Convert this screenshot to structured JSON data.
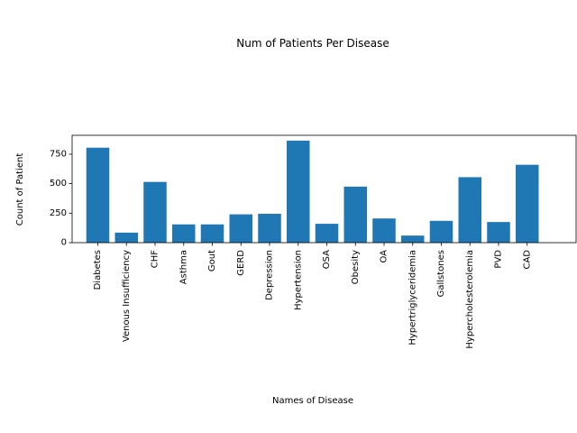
{
  "chart_data": {
    "type": "bar",
    "title": "Num of Patients Per Disease",
    "xlabel": "Names of Disease",
    "ylabel": "Count of Patient",
    "categories": [
      "Diabetes",
      "Venous Insufficiency",
      "CHF",
      "Asthma",
      "Gout",
      "GERD",
      "Depression",
      "Hypertension",
      "OSA",
      "Obesity",
      "OA",
      "Hypertriglyceridemia",
      "Gallstones",
      "Hypercholesterolemia",
      "PVD",
      "CAD"
    ],
    "values": [
      805,
      85,
      515,
      155,
      155,
      240,
      245,
      865,
      160,
      475,
      205,
      60,
      185,
      555,
      175,
      660
    ],
    "ylim": [
      0,
      910
    ],
    "yticks": [
      0,
      250,
      500,
      750
    ],
    "bar_color": "#1f77b4",
    "grid": false
  }
}
